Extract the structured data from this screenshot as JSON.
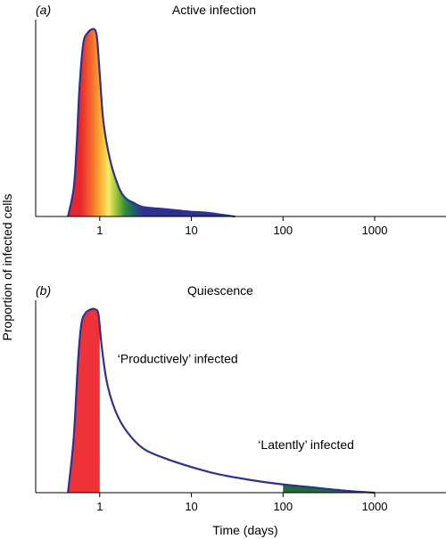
{
  "ylabel": "Proportion of infected cells",
  "xlabel": "Time (days)",
  "colors": {
    "curve": "#2e3192",
    "productive": "#ee3338",
    "latent": "#1f6b3a",
    "axis": "#000000"
  },
  "chart_data": [
    {
      "type": "area",
      "panel": "a",
      "title": "Active infection",
      "x_scale": "log",
      "xlim": [
        0.2,
        6000
      ],
      "ylim": [
        0,
        1.05
      ],
      "xticks": [
        1,
        10,
        100,
        1000
      ],
      "xtick_labels": [
        "1",
        "10",
        "100",
        "1000"
      ],
      "fill": "gradient",
      "curve": {
        "x": [
          0.45,
          0.52,
          0.56,
          0.6,
          0.66,
          0.74,
          0.84,
          0.9,
          0.94,
          1.0,
          1.1,
          1.3,
          1.6,
          1.9,
          2.4,
          3.0,
          5.0,
          10,
          15,
          25,
          30
        ],
        "y": [
          0.0,
          0.15,
          0.38,
          0.68,
          0.92,
          0.98,
          1.0,
          0.99,
          0.94,
          0.76,
          0.5,
          0.3,
          0.16,
          0.1,
          0.07,
          0.05,
          0.04,
          0.025,
          0.02,
          0.005,
          0.0
        ]
      }
    },
    {
      "type": "area",
      "panel": "b",
      "title": "Quiescence",
      "x_scale": "log",
      "xlim": [
        0.2,
        6000
      ],
      "ylim": [
        0,
        1.05
      ],
      "xticks": [
        1,
        10,
        100,
        1000
      ],
      "xtick_labels": [
        "1",
        "10",
        "100",
        "1000"
      ],
      "curve": {
        "x": [
          0.45,
          0.52,
          0.58,
          0.63,
          0.7,
          0.8,
          0.9,
          0.97,
          1.05,
          1.2,
          1.5,
          2.0,
          3.0,
          5.0,
          10,
          20,
          50,
          100,
          200,
          500,
          1000
        ],
        "y": [
          0.0,
          0.3,
          0.72,
          0.92,
          0.98,
          1.0,
          1.0,
          0.97,
          0.8,
          0.6,
          0.44,
          0.33,
          0.24,
          0.19,
          0.14,
          0.1,
          0.065,
          0.045,
          0.03,
          0.01,
          0.0
        ]
      },
      "annotations": [
        {
          "text": "‘Productively’ infected",
          "color": "#ee3338",
          "shaded_x": [
            0.45,
            1.0
          ],
          "label_x": 1.0,
          "label_y": 0.62
        },
        {
          "text": "‘Latently’ infected",
          "color": "#1f6b3a",
          "shaded_x": [
            100,
            1000
          ],
          "label_x": 100,
          "label_y": 0.14
        }
      ]
    }
  ]
}
